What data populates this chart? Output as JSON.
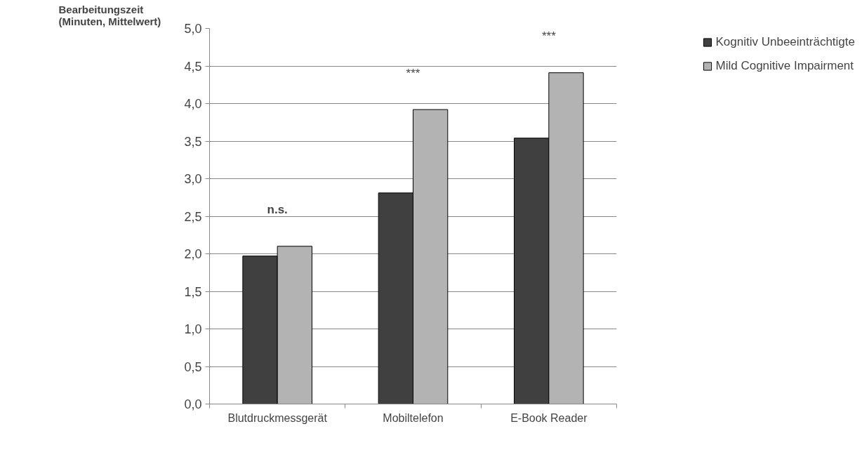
{
  "chart_data": {
    "type": "bar",
    "ylabel": "Bearbeitungszeit (Minuten, Mittelwert)",
    "categories": [
      "Blutdruckmessgerät",
      "Mobiltelefon",
      "E-Book Reader"
    ],
    "series": [
      {
        "name": "Kognitiv Unbeeinträchtigte",
        "color": "#404040",
        "values": [
          1.97,
          2.81,
          3.54
        ]
      },
      {
        "name": "Mild Cognitive Impairment",
        "color": "#b3b3b3",
        "values": [
          2.1,
          3.92,
          4.41
        ]
      }
    ],
    "ylim": [
      0,
      5
    ],
    "yticks": [
      {
        "value": 0,
        "label": "0,0"
      },
      {
        "value": 0.5,
        "label": "0,5"
      },
      {
        "value": 1,
        "label": "1,0"
      },
      {
        "value": 1.5,
        "label": "1,5"
      },
      {
        "value": 2,
        "label": "2,0"
      },
      {
        "value": 2.5,
        "label": "2,5"
      },
      {
        "value": 3,
        "label": "3,0"
      },
      {
        "value": 3.5,
        "label": "3,5"
      },
      {
        "value": 4,
        "label": "4,0"
      },
      {
        "value": 4.5,
        "label": "4,5"
      },
      {
        "value": 5,
        "label": "5,0"
      }
    ],
    "annotations": [
      "n.s.",
      "***",
      "***"
    ],
    "grid": "y",
    "legend": "right"
  }
}
